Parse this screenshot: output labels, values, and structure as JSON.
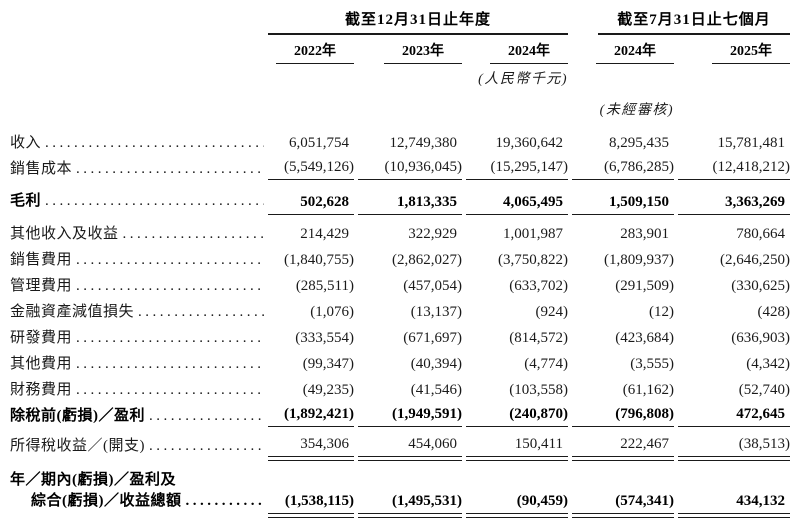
{
  "header": {
    "group_annual": "截至12月31日止年度",
    "group_interim": "截至7月31日止七個月",
    "years": [
      "2022年",
      "2023年",
      "2024年",
      "2024年",
      "2025年"
    ],
    "currency_note": "(人民幣千元)",
    "unaudited_note": "(未經審核)"
  },
  "table": {
    "leader": "........................................................",
    "rows": [
      {
        "name": "revenue",
        "label": "收入",
        "values": [
          "6,051,754",
          "12,749,380",
          "19,360,642",
          "8,295,435",
          "15,781,481"
        ],
        "bold": false,
        "rule": "none",
        "gap": "none"
      },
      {
        "name": "cost-of-sales",
        "label": "銷售成本",
        "values": [
          "(5,549,126)",
          "(10,936,045)",
          "(15,295,147)",
          "(6,786,285)",
          "(12,418,212)"
        ],
        "bold": false,
        "rule": "single",
        "gap": "none"
      },
      {
        "name": "gross-profit",
        "label": "毛利",
        "values": [
          "502,628",
          "1,813,335",
          "4,065,495",
          "1,509,150",
          "3,363,269"
        ],
        "bold": true,
        "rule": "single",
        "gap": "sm",
        "pad": "lg"
      },
      {
        "name": "other-income-and-gains",
        "label": "其他收入及收益",
        "values": [
          "214,429",
          "322,929",
          "1,001,987",
          "283,901",
          "780,664"
        ],
        "bold": false,
        "rule": "none",
        "gap": "sm"
      },
      {
        "name": "selling-expenses",
        "label": "銷售費用",
        "values": [
          "(1,840,755)",
          "(2,862,027)",
          "(3,750,822)",
          "(1,809,937)",
          "(2,646,250)"
        ],
        "bold": false,
        "rule": "none",
        "gap": "none"
      },
      {
        "name": "administrative-expenses",
        "label": "管理費用",
        "values": [
          "(285,511)",
          "(457,054)",
          "(633,702)",
          "(291,509)",
          "(330,625)"
        ],
        "bold": false,
        "rule": "none",
        "gap": "none"
      },
      {
        "name": "impairment-losses-financial-assets",
        "label": "金融資產減值損失",
        "values": [
          "(1,076)",
          "(13,137)",
          "(924)",
          "(12)",
          "(428)"
        ],
        "bold": false,
        "rule": "none",
        "gap": "none"
      },
      {
        "name": "rd-expenses",
        "label": "研發費用",
        "values": [
          "(333,554)",
          "(671,697)",
          "(814,572)",
          "(423,684)",
          "(636,903)"
        ],
        "bold": false,
        "rule": "none",
        "gap": "none"
      },
      {
        "name": "other-expenses",
        "label": "其他費用",
        "values": [
          "(99,347)",
          "(40,394)",
          "(4,774)",
          "(3,555)",
          "(4,342)"
        ],
        "bold": false,
        "rule": "none",
        "gap": "none"
      },
      {
        "name": "finance-costs",
        "label": "財務費用",
        "values": [
          "(49,235)",
          "(41,546)",
          "(103,558)",
          "(61,162)",
          "(52,740)"
        ],
        "bold": false,
        "rule": "none",
        "gap": "none"
      },
      {
        "name": "loss-profit-before-tax",
        "label": "除稅前(虧損)／盈利",
        "values": [
          "(1,892,421)",
          "(1,949,591)",
          "(240,870)",
          "(796,808)",
          "472,645"
        ],
        "bold": true,
        "rule": "single",
        "gap": "none"
      },
      {
        "name": "income-tax-credit-expense",
        "label": "所得稅收益／(開支)",
        "values": [
          "354,306",
          "454,060",
          "150,411",
          "222,467",
          "(38,513)"
        ],
        "bold": false,
        "rule": "double",
        "gap": "sm"
      },
      {
        "name": "total-comprehensive-loss-income",
        "label": "年／期內(虧損)／盈利及",
        "label2": "綜合(虧損)／收益總額",
        "values": [
          "(1,538,115)",
          "(1,495,531)",
          "(90,459)",
          "(574,341)",
          "434,132"
        ],
        "bold": true,
        "rule": "double",
        "gap": "lg"
      }
    ]
  }
}
